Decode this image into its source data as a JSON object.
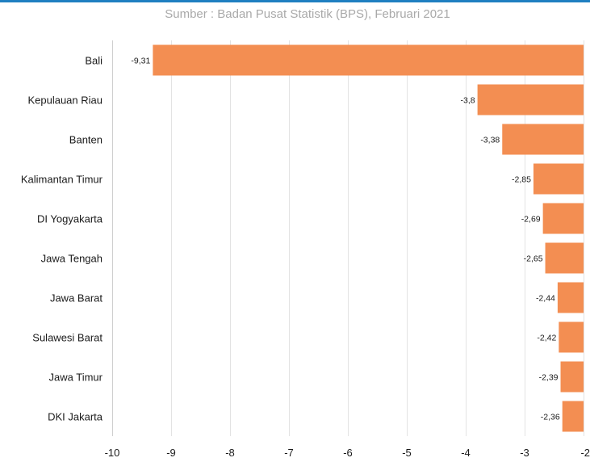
{
  "header": {
    "source": "Sumber : Badan Pusat Statistik (BPS), Februari 2021"
  },
  "colors": {
    "bar": "#f38e52",
    "grid": "#e3e3e3",
    "accent_border": "#1f7fc1"
  },
  "chart_data": {
    "type": "bar",
    "orientation": "horizontal",
    "title": "",
    "xlabel": "",
    "ylabel": "",
    "xlim": [
      -10,
      -2
    ],
    "grid": true,
    "categories": [
      "Bali",
      "Kepulauan Riau",
      "Banten",
      "Kalimantan Timur",
      "DI Yogyakarta",
      "Jawa Tengah",
      "Jawa Barat",
      "Sulawesi Barat",
      "Jawa Timur",
      "DKI Jakarta"
    ],
    "values": [
      -9.31,
      -3.8,
      -3.38,
      -2.85,
      -2.69,
      -2.65,
      -2.44,
      -2.42,
      -2.39,
      -2.36
    ],
    "value_labels": [
      "-9,31",
      "-3,8",
      "-3,38",
      "-2,85",
      "-2,69",
      "-2,65",
      "-2,44",
      "-2,42",
      "-2,39",
      "-2,36"
    ],
    "ticks": [
      -10,
      -9,
      -8,
      -7,
      -6,
      -5,
      -4,
      -3,
      -2
    ],
    "tick_labels": [
      "-10",
      "-9",
      "-8",
      "-7",
      "-6",
      "-5",
      "-4",
      "-3",
      "-2"
    ]
  }
}
